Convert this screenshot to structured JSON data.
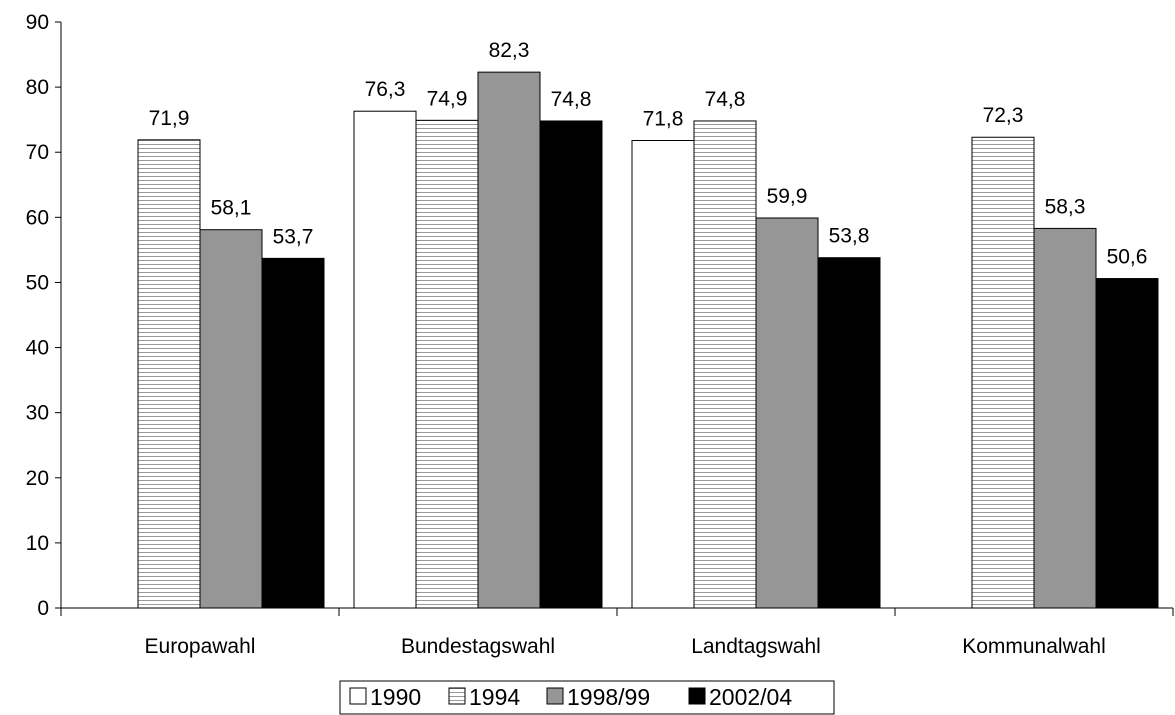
{
  "chart_data": {
    "type": "bar",
    "title": "",
    "xlabel": "",
    "ylabel": "",
    "ylim": [
      0,
      90
    ],
    "yticks": [
      0,
      10,
      20,
      30,
      40,
      50,
      60,
      70,
      80,
      90
    ],
    "grid": false,
    "legend_position": "bottom-center",
    "categories": [
      "Europawahl",
      "Bundestagswahl",
      "Landtagswahl",
      "Kommunalwahl"
    ],
    "series": [
      {
        "name": "1990",
        "values": [
          null,
          76.3,
          71.8,
          null
        ],
        "labels": [
          "",
          "76,3",
          "71,8",
          ""
        ],
        "color": "#ffffff",
        "pattern": "none"
      },
      {
        "name": "1994",
        "values": [
          71.9,
          74.9,
          74.8,
          72.3
        ],
        "labels": [
          "71,9",
          "74,9",
          "74,8",
          "72,3"
        ],
        "color": "#ffffff",
        "pattern": "horizontal-lines"
      },
      {
        "name": "1998/99",
        "values": [
          58.1,
          82.3,
          59.9,
          58.3
        ],
        "labels": [
          "58,1",
          "82,3",
          "59,9",
          "58,3"
        ],
        "color": "#969696",
        "pattern": "none"
      },
      {
        "name": "2002/04",
        "values": [
          53.7,
          74.8,
          53.8,
          50.6
        ],
        "labels": [
          "53,7",
          "74,8",
          "53,8",
          "50,6"
        ],
        "color": "#000000",
        "pattern": "none"
      }
    ]
  }
}
